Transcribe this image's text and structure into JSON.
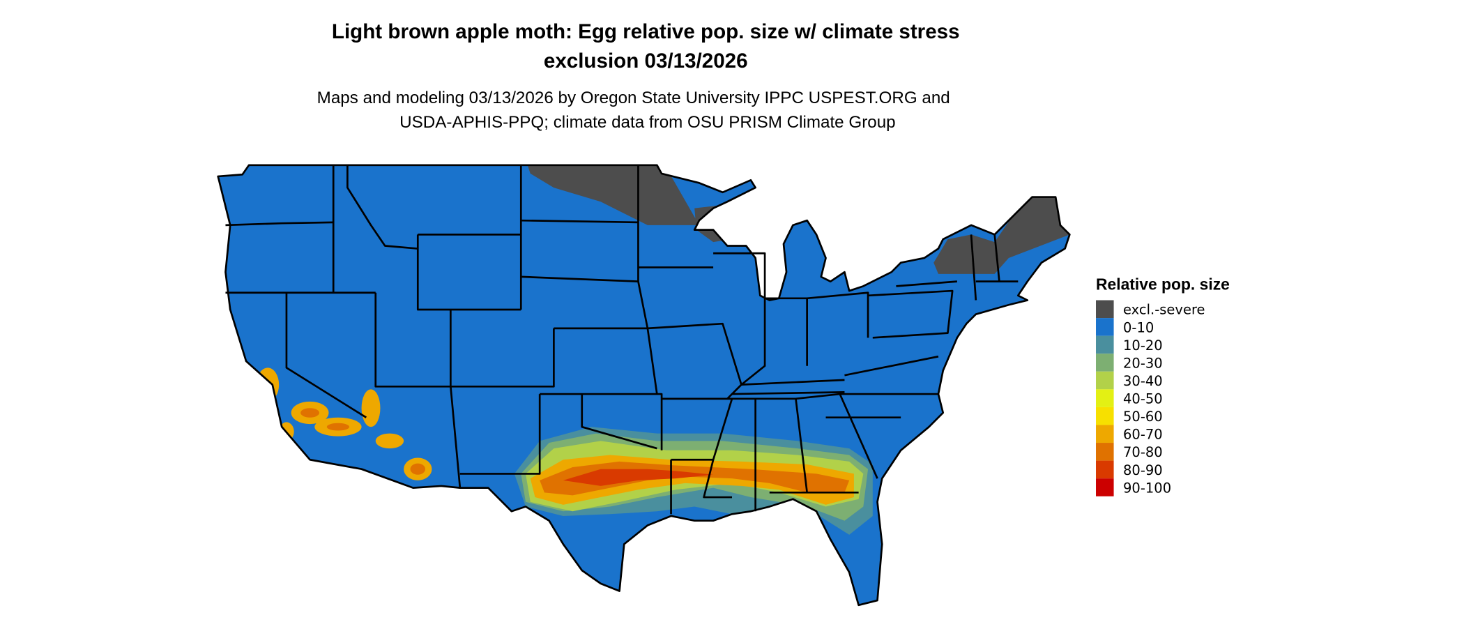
{
  "title": {
    "line1": "Light brown apple moth: Egg relative pop. size w/ climate stress",
    "line2": "exclusion 03/13/2026"
  },
  "subtitle": {
    "line1": "Maps and modeling 03/13/2026 by Oregon State University IPPC USPEST.ORG and",
    "line2": "USDA-APHIS-PPQ; climate data from OSU PRISM Climate Group"
  },
  "legend": {
    "title": "Relative pop. size",
    "items": [
      {
        "label": "excl.-severe",
        "color": "#4d4d4d"
      },
      {
        "label": "0-10",
        "color": "#1a73cc"
      },
      {
        "label": "10-20",
        "color": "#4a8f9e"
      },
      {
        "label": "20-30",
        "color": "#7daf72"
      },
      {
        "label": "30-40",
        "color": "#b2d149"
      },
      {
        "label": "40-50",
        "color": "#e3f014"
      },
      {
        "label": "50-60",
        "color": "#f7e000"
      },
      {
        "label": "60-70",
        "color": "#eea800"
      },
      {
        "label": "70-80",
        "color": "#e07200"
      },
      {
        "label": "80-90",
        "color": "#d93a00"
      },
      {
        "label": "90-100",
        "color": "#cc0000"
      }
    ]
  }
}
